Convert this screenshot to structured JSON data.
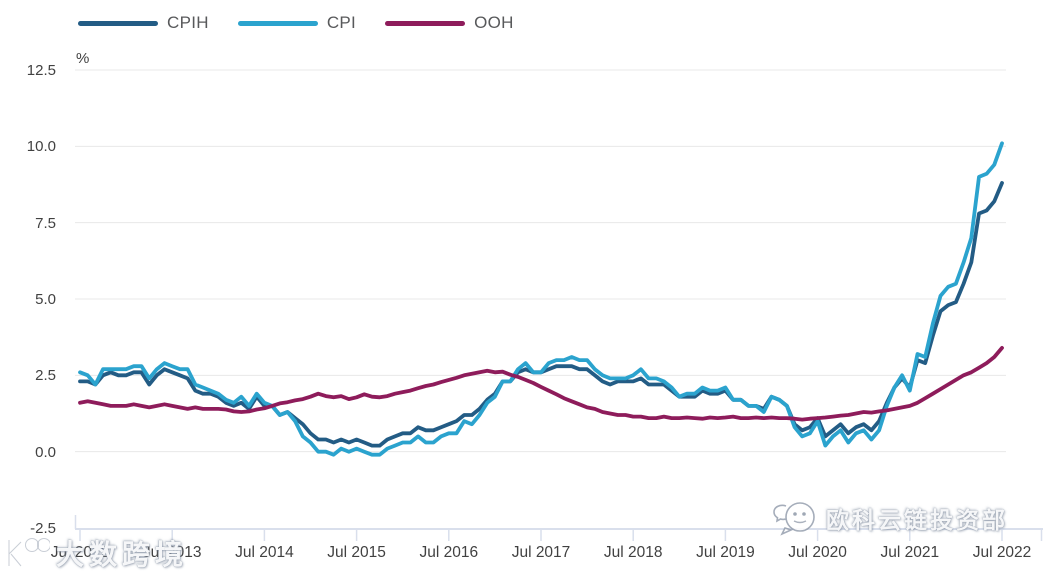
{
  "legend": {
    "items": [
      {
        "label": "CPIH"
      },
      {
        "label": "CPI"
      },
      {
        "label": "OOH"
      }
    ]
  },
  "colors": {
    "cpih": "#235C85",
    "cpi": "#2BA3CE",
    "ooh": "#8E1C5B",
    "gridline": "#e8e8e8",
    "axis": "#d9dfec",
    "axis_text": "#414141",
    "legend_text": "#58595B"
  },
  "watermarks": {
    "bottom_left": "大数跨境",
    "bottom_right": "欧科云链投资部"
  },
  "chart_data": {
    "type": "line",
    "title": "",
    "unit_label": "%",
    "grid": true,
    "legend_position": "top",
    "x_axis": {
      "start": "Jul 2012",
      "end": "Jul 2022",
      "interval": "monthly",
      "tick_labels": [
        "Jul 2012",
        "Jul 2013",
        "Jul 2014",
        "Jul 2015",
        "Jul 2016",
        "Jul 2017",
        "Jul 2018",
        "Jul 2019",
        "Jul 2020",
        "Jul 2021",
        "Jul 2022"
      ]
    },
    "y_axis": {
      "min": -2.5,
      "max": 12.5,
      "tick_step": 2.5,
      "tick_labels": [
        "12.5",
        "10.0",
        "7.5",
        "5.0",
        "2.5",
        "0.0",
        "-2.5"
      ]
    },
    "series": [
      {
        "name": "CPIH",
        "color": "#235C85",
        "values": [
          2.3,
          2.3,
          2.2,
          2.5,
          2.6,
          2.5,
          2.5,
          2.6,
          2.6,
          2.2,
          2.5,
          2.7,
          2.6,
          2.5,
          2.4,
          2.0,
          1.9,
          1.9,
          1.8,
          1.6,
          1.5,
          1.6,
          1.4,
          1.8,
          1.5,
          1.5,
          1.2,
          1.3,
          1.1,
          0.9,
          0.6,
          0.4,
          0.4,
          0.3,
          0.4,
          0.3,
          0.4,
          0.3,
          0.2,
          0.2,
          0.4,
          0.5,
          0.6,
          0.6,
          0.8,
          0.7,
          0.7,
          0.8,
          0.9,
          1.0,
          1.2,
          1.2,
          1.4,
          1.7,
          1.9,
          2.3,
          2.3,
          2.6,
          2.7,
          2.6,
          2.6,
          2.7,
          2.8,
          2.8,
          2.8,
          2.7,
          2.7,
          2.5,
          2.3,
          2.2,
          2.3,
          2.3,
          2.3,
          2.4,
          2.2,
          2.2,
          2.2,
          2.0,
          1.8,
          1.8,
          1.8,
          2.0,
          1.9,
          1.9,
          2.0,
          1.7,
          1.7,
          1.5,
          1.5,
          1.4,
          1.8,
          1.7,
          1.5,
          0.9,
          0.7,
          0.8,
          1.1,
          0.5,
          0.7,
          0.9,
          0.6,
          0.8,
          0.9,
          0.7,
          1.0,
          1.6,
          2.1,
          2.4,
          2.1,
          3.0,
          2.9,
          3.8,
          4.6,
          4.8,
          4.9,
          5.5,
          6.2,
          7.8,
          7.9,
          8.2,
          8.8
        ]
      },
      {
        "name": "CPI",
        "color": "#2BA3CE",
        "values": [
          2.6,
          2.5,
          2.2,
          2.7,
          2.7,
          2.7,
          2.7,
          2.8,
          2.8,
          2.4,
          2.7,
          2.9,
          2.8,
          2.7,
          2.7,
          2.2,
          2.1,
          2.0,
          1.9,
          1.7,
          1.6,
          1.8,
          1.5,
          1.9,
          1.6,
          1.5,
          1.2,
          1.3,
          1.0,
          0.5,
          0.3,
          0.0,
          0.0,
          -0.1,
          0.1,
          0.0,
          0.1,
          0.0,
          -0.1,
          -0.1,
          0.1,
          0.2,
          0.3,
          0.3,
          0.5,
          0.3,
          0.3,
          0.5,
          0.6,
          0.6,
          1.0,
          0.9,
          1.2,
          1.6,
          1.8,
          2.3,
          2.3,
          2.7,
          2.9,
          2.6,
          2.6,
          2.9,
          3.0,
          3.0,
          3.1,
          3.0,
          3.0,
          2.7,
          2.5,
          2.4,
          2.4,
          2.4,
          2.5,
          2.7,
          2.4,
          2.4,
          2.3,
          2.1,
          1.8,
          1.9,
          1.9,
          2.1,
          2.0,
          2.0,
          2.1,
          1.7,
          1.7,
          1.5,
          1.5,
          1.3,
          1.8,
          1.7,
          1.5,
          0.8,
          0.5,
          0.6,
          1.0,
          0.2,
          0.5,
          0.7,
          0.3,
          0.6,
          0.7,
          0.4,
          0.7,
          1.5,
          2.1,
          2.5,
          2.0,
          3.2,
          3.1,
          4.2,
          5.1,
          5.4,
          5.5,
          6.2,
          7.0,
          9.0,
          9.1,
          9.4,
          10.1
        ]
      },
      {
        "name": "OOH",
        "color": "#8E1C5B",
        "values": [
          1.6,
          1.65,
          1.6,
          1.55,
          1.5,
          1.5,
          1.5,
          1.55,
          1.5,
          1.45,
          1.5,
          1.55,
          1.5,
          1.45,
          1.4,
          1.45,
          1.4,
          1.4,
          1.4,
          1.38,
          1.32,
          1.3,
          1.32,
          1.38,
          1.42,
          1.5,
          1.58,
          1.62,
          1.68,
          1.72,
          1.8,
          1.9,
          1.82,
          1.78,
          1.82,
          1.72,
          1.78,
          1.88,
          1.8,
          1.78,
          1.82,
          1.9,
          1.95,
          2.0,
          2.08,
          2.15,
          2.2,
          2.28,
          2.35,
          2.42,
          2.5,
          2.55,
          2.6,
          2.65,
          2.6,
          2.62,
          2.52,
          2.45,
          2.35,
          2.25,
          2.12,
          2.0,
          1.88,
          1.75,
          1.65,
          1.55,
          1.45,
          1.4,
          1.3,
          1.25,
          1.2,
          1.2,
          1.15,
          1.15,
          1.1,
          1.1,
          1.15,
          1.1,
          1.1,
          1.12,
          1.1,
          1.08,
          1.12,
          1.1,
          1.12,
          1.15,
          1.1,
          1.1,
          1.12,
          1.1,
          1.12,
          1.1,
          1.1,
          1.08,
          1.05,
          1.08,
          1.1,
          1.12,
          1.15,
          1.18,
          1.2,
          1.25,
          1.3,
          1.28,
          1.32,
          1.35,
          1.4,
          1.45,
          1.5,
          1.6,
          1.75,
          1.9,
          2.05,
          2.2,
          2.35,
          2.5,
          2.6,
          2.75,
          2.9,
          3.1,
          3.4
        ]
      }
    ]
  }
}
